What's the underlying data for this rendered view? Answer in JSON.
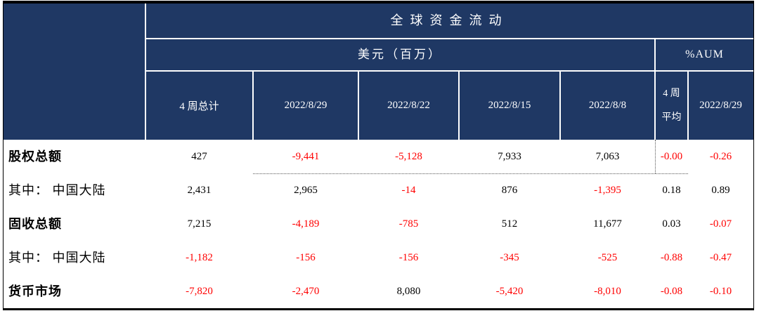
{
  "colors": {
    "header_bg": "#1F3864",
    "header_text": "#FFFFFF",
    "negative": "#FF0000",
    "positive": "#000000",
    "table_border": "#000000"
  },
  "header": {
    "title": "全球资金流动",
    "usd_group": "美元（百万）",
    "aum_group": "%AUM",
    "cols": {
      "total": "4 周总计",
      "date1": "2022/8/29",
      "date2": "2022/8/22",
      "date3": "2022/8/15",
      "date4": "2022/8/8",
      "avg_line1": "4 周",
      "avg_line2": "平均",
      "aum_date": "2022/8/29"
    }
  },
  "rows": [
    {
      "label": "股权总额",
      "emphasis": "bold",
      "cells": [
        {
          "text": "427",
          "tone": "pos"
        },
        {
          "text": "-9,441",
          "tone": "neg"
        },
        {
          "text": "-5,128",
          "tone": "neg"
        },
        {
          "text": "7,933",
          "tone": "pos"
        },
        {
          "text": "7,063",
          "tone": "pos"
        },
        {
          "text": "-0.00",
          "tone": "neg"
        },
        {
          "text": "-0.26",
          "tone": "neg"
        }
      ]
    },
    {
      "label": "其中： 中国大陆",
      "emphasis": "normal",
      "cells": [
        {
          "text": "2,431",
          "tone": "pos"
        },
        {
          "text": "2,965",
          "tone": "pos"
        },
        {
          "text": "-14",
          "tone": "neg"
        },
        {
          "text": "876",
          "tone": "pos"
        },
        {
          "text": "-1,395",
          "tone": "neg"
        },
        {
          "text": "0.18",
          "tone": "pos"
        },
        {
          "text": "0.89",
          "tone": "pos"
        }
      ]
    },
    {
      "label": "固收总额",
      "emphasis": "bold",
      "cells": [
        {
          "text": "7,215",
          "tone": "pos"
        },
        {
          "text": "-4,189",
          "tone": "neg"
        },
        {
          "text": "-785",
          "tone": "neg"
        },
        {
          "text": "512",
          "tone": "pos"
        },
        {
          "text": "11,677",
          "tone": "pos"
        },
        {
          "text": "0.03",
          "tone": "pos"
        },
        {
          "text": "-0.07",
          "tone": "neg"
        }
      ]
    },
    {
      "label": "其中： 中国大陆",
      "emphasis": "normal",
      "cells": [
        {
          "text": "-1,182",
          "tone": "neg"
        },
        {
          "text": "-156",
          "tone": "neg"
        },
        {
          "text": "-156",
          "tone": "neg"
        },
        {
          "text": "-345",
          "tone": "neg"
        },
        {
          "text": "-525",
          "tone": "neg"
        },
        {
          "text": "-0.88",
          "tone": "neg"
        },
        {
          "text": "-0.47",
          "tone": "neg"
        }
      ]
    },
    {
      "label": "货币市场",
      "emphasis": "bold",
      "cells": [
        {
          "text": "-7,820",
          "tone": "neg"
        },
        {
          "text": "-2,470",
          "tone": "neg"
        },
        {
          "text": "8,080",
          "tone": "pos"
        },
        {
          "text": "-5,420",
          "tone": "neg"
        },
        {
          "text": "-8,010",
          "tone": "neg"
        },
        {
          "text": "-0.08",
          "tone": "neg"
        },
        {
          "text": "-0.10",
          "tone": "neg"
        }
      ]
    }
  ]
}
